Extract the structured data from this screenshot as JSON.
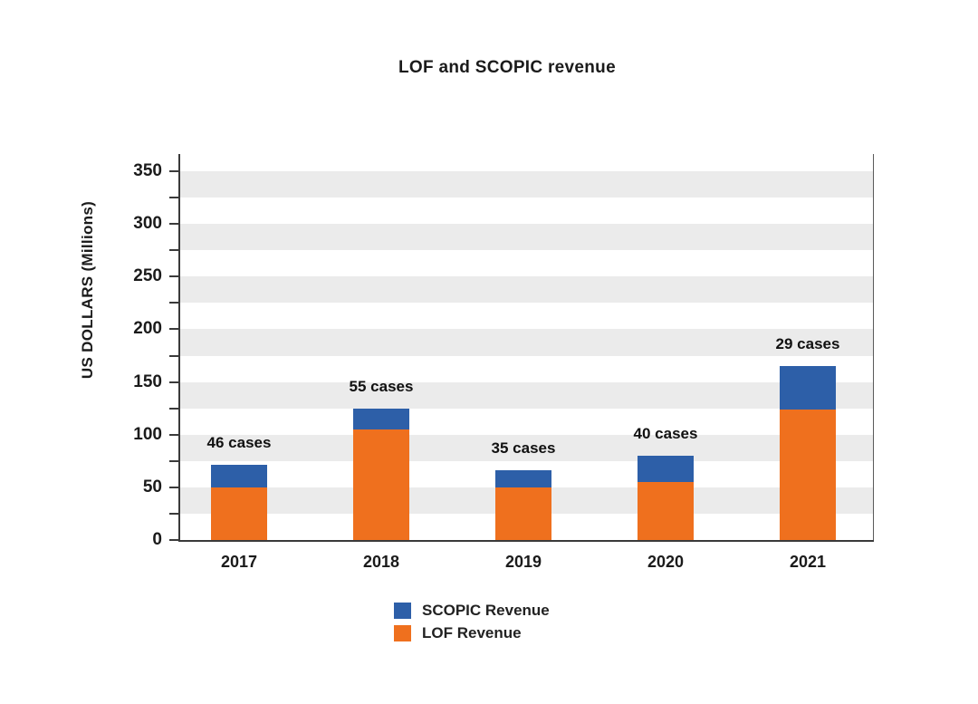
{
  "chart_data": {
    "type": "bar",
    "stacked": true,
    "title": "LOF and SCOPIC revenue",
    "ylabel": "US DOLLARS (Millions)",
    "xlabel": "",
    "ylim": [
      0,
      350
    ],
    "ytick_step": 50,
    "minor_tick_step": 25,
    "grid": "horizontal-bands",
    "band_color": "#ebebeb",
    "axis_color": "#3a3a3a",
    "text_color": "#1b1b1b",
    "categories": [
      "2017",
      "2018",
      "2019",
      "2020",
      "2021"
    ],
    "series": [
      {
        "name": "LOF Revenue",
        "color": "#ef701e",
        "values": [
          50,
          105,
          50,
          55,
          124
        ]
      },
      {
        "name": "SCOPIC Revenue",
        "color": "#2d5fa8",
        "values": [
          21,
          20,
          16,
          25,
          41
        ]
      }
    ],
    "totals": [
      71,
      125,
      66,
      80,
      165
    ],
    "annotations": [
      "46 cases",
      "55 cases",
      "35 cases",
      "40 cases",
      "29 cases"
    ],
    "case_counts": [
      46,
      55,
      35,
      40,
      29
    ],
    "legend_position": "bottom",
    "legend": [
      {
        "label": "SCOPIC Revenue",
        "color": "#2d5fa8"
      },
      {
        "label": "LOF Revenue",
        "color": "#ef701e"
      }
    ]
  }
}
